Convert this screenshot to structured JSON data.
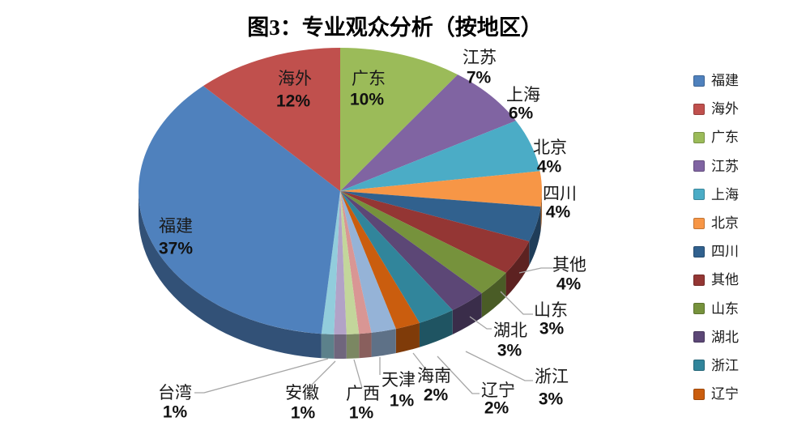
{
  "title": "图3：专业观众分析（按地区）",
  "chart_data": {
    "type": "pie",
    "style": "3d",
    "title": "图3：专业观众分析（按地区）",
    "legend_position": "right",
    "series": [
      {
        "name": "福建",
        "value": 37,
        "label": "37%",
        "color": "#4F81BD"
      },
      {
        "name": "海外",
        "value": 12,
        "label": "12%",
        "color": "#C0504D"
      },
      {
        "name": "广东",
        "value": 10,
        "label": "10%",
        "color": "#9BBB59"
      },
      {
        "name": "江苏",
        "value": 7,
        "label": "7%",
        "color": "#8064A2"
      },
      {
        "name": "上海",
        "value": 6,
        "label": "6%",
        "color": "#4BACC6"
      },
      {
        "name": "北京",
        "value": 4,
        "label": "4%",
        "color": "#F79646"
      },
      {
        "name": "四川",
        "value": 4,
        "label": "4%",
        "color": "#31618E"
      },
      {
        "name": "其他",
        "value": 4,
        "label": "4%",
        "color": "#943634"
      },
      {
        "name": "山东",
        "value": 3,
        "label": "3%",
        "color": "#76923C"
      },
      {
        "name": "湖北",
        "value": 3,
        "label": "3%",
        "color": "#5C4776"
      },
      {
        "name": "浙江",
        "value": 3,
        "label": "3%",
        "color": "#31859B"
      },
      {
        "name": "辽宁",
        "value": 2,
        "label": "2%",
        "color": "#CA5D0E"
      },
      {
        "name": "海南",
        "value": 2,
        "label": "2%",
        "color": "#95B3D7"
      },
      {
        "name": "天津",
        "value": 1,
        "label": "1%",
        "color": "#D99694"
      },
      {
        "name": "广西",
        "value": 1,
        "label": "1%",
        "color": "#C3D69B"
      },
      {
        "name": "安徽",
        "value": 1,
        "label": "1%",
        "color": "#B2A2C7"
      },
      {
        "name": "台湾",
        "value": 1,
        "label": "1%",
        "color": "#92CDDC"
      }
    ],
    "legend_items": [
      "福建",
      "海外",
      "广东",
      "江苏",
      "上海",
      "北京",
      "四川",
      "其他",
      "山东",
      "湖北",
      "浙江",
      "辽宁"
    ]
  }
}
